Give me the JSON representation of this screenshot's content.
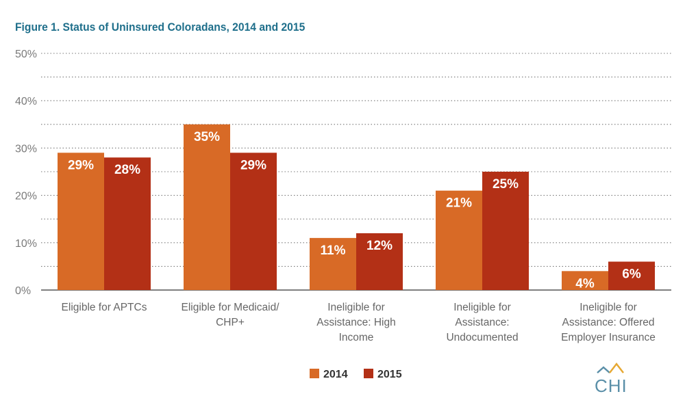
{
  "colors": {
    "title": "#1f6f8b",
    "s2014": "#d86a26",
    "s2015": "#b33016",
    "logo": "#5a8fa8",
    "logo_roof": "#e6a832"
  },
  "chart_data": {
    "type": "bar",
    "title": "Figure 1. Status of Uninsured Coloradans, 2014 and 2015",
    "xlabel": "",
    "ylabel": "",
    "ylim": [
      0,
      50
    ],
    "yticks": [
      "0%",
      "10%",
      "20%",
      "30%",
      "40%",
      "50%"
    ],
    "ytick_values": [
      0,
      10,
      20,
      30,
      40,
      50
    ],
    "grid": "dotted horizontal",
    "legend": "bottom-center",
    "categories": [
      [
        "Eligible for APTCs"
      ],
      [
        "Eligible for Medicaid/",
        "CHP+"
      ],
      [
        "Ineligible for",
        "Assistance: High",
        "Income"
      ],
      [
        "Ineligible for",
        "Assistance:",
        "Undocumented"
      ],
      [
        "Ineligible for",
        "Assistance: Offered",
        "Employer Insurance"
      ]
    ],
    "series": [
      {
        "name": "2014",
        "values": [
          29,
          35,
          11,
          21,
          4
        ],
        "labels": [
          "29%",
          "35%",
          "11%",
          "21%",
          "4%"
        ]
      },
      {
        "name": "2015",
        "values": [
          28,
          29,
          12,
          25,
          6
        ],
        "labels": [
          "28%",
          "29%",
          "12%",
          "25%",
          "6%"
        ]
      }
    ]
  },
  "logo": {
    "text": "CHI"
  }
}
